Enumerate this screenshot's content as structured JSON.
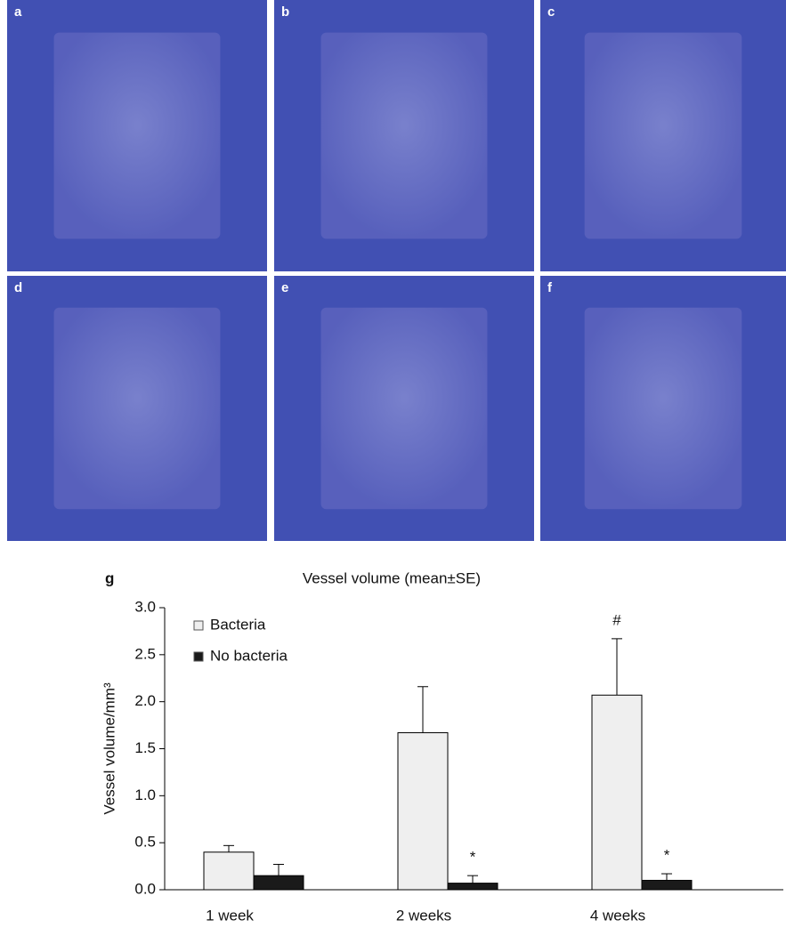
{
  "panels": [
    "a",
    "b",
    "c",
    "d",
    "e",
    "f"
  ],
  "chart_data": {
    "type": "bar",
    "panel_label": "g",
    "title": "Vessel volume (mean±SE)",
    "y_label": "Vessel volume/mm³",
    "categories": [
      "1 week",
      "2 weeks",
      "4 weeks"
    ],
    "series": [
      {
        "name": "Bacteria",
        "color": "#efefef",
        "values": [
          0.4,
          1.67,
          2.07
        ],
        "errors": [
          0.07,
          0.49,
          0.6
        ],
        "annotations": [
          null,
          null,
          "#"
        ]
      },
      {
        "name": "No bacteria",
        "color": "#1a1a1a",
        "values": [
          0.15,
          0.07,
          0.1
        ],
        "errors": [
          0.12,
          0.08,
          0.07
        ],
        "annotations": [
          null,
          "*",
          "*"
        ]
      }
    ],
    "ylim": [
      0,
      3
    ],
    "yticks": [
      {
        "value": 0,
        "label": "0.0"
      },
      {
        "value": 0.5,
        "label": "0.5"
      },
      {
        "value": 1,
        "label": "1.0"
      },
      {
        "value": 1.5,
        "label": "1.5"
      },
      {
        "value": 2,
        "label": "2.0"
      },
      {
        "value": 2.5,
        "label": "2.5"
      },
      {
        "value": 3,
        "label": "3.0"
      }
    ],
    "legend": "top-left",
    "grid": false
  }
}
